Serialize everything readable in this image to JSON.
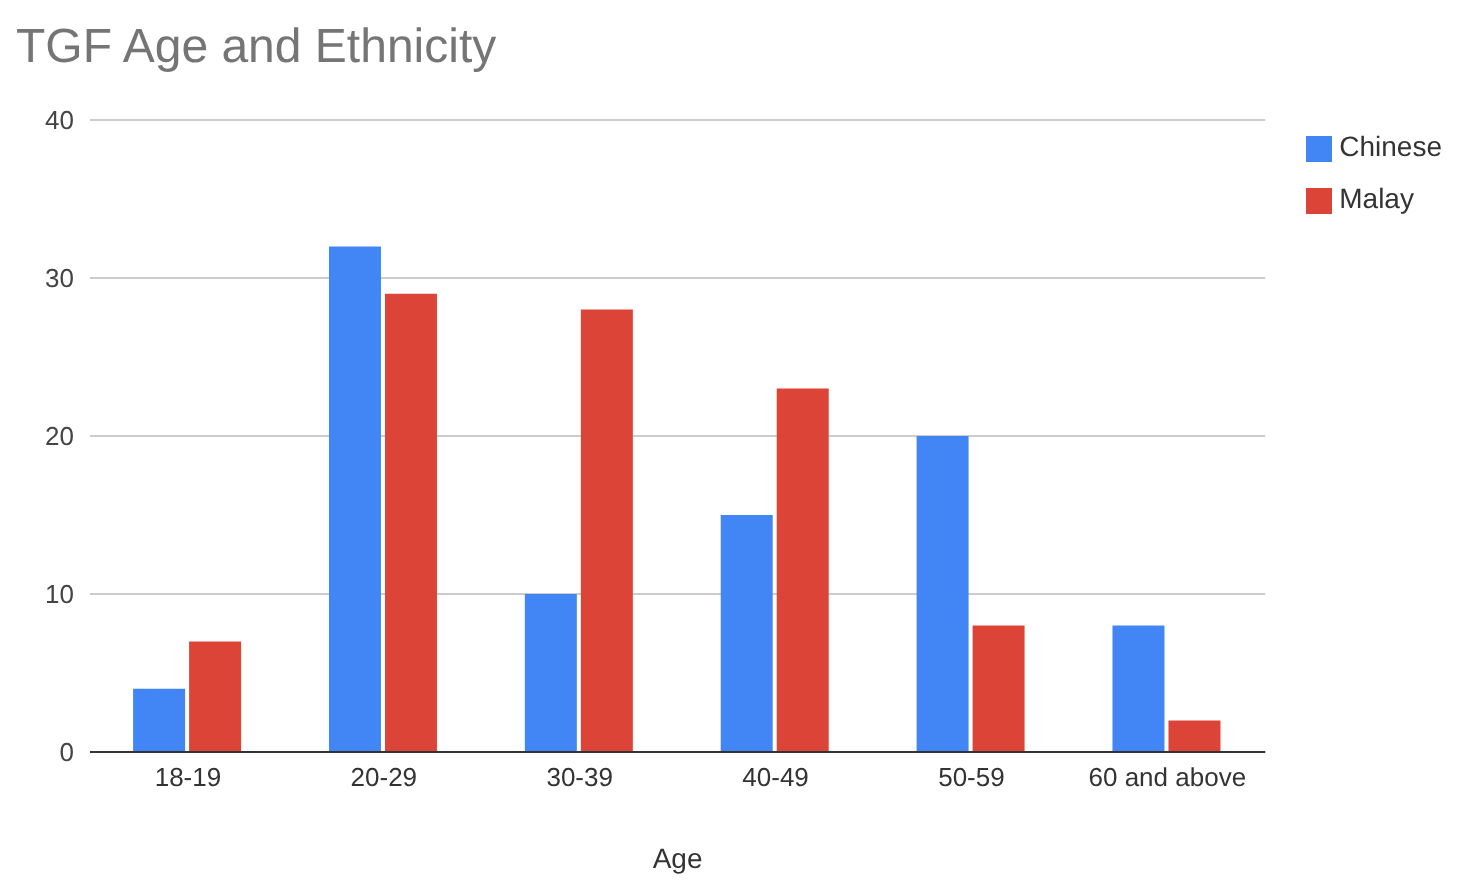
{
  "chart_data": {
    "type": "bar",
    "title": "TGF Age and Ethnicity",
    "xlabel": "Age",
    "categories": [
      "18-19",
      "20-29",
      "30-39",
      "40-49",
      "50-59",
      "60 and above"
    ],
    "series": [
      {
        "name": "Chinese",
        "color": "#4285f4",
        "values": [
          4,
          32,
          10,
          15,
          20,
          8
        ]
      },
      {
        "name": "Malay",
        "color": "#db4437",
        "values": [
          7,
          29,
          28,
          23,
          8,
          2
        ]
      }
    ],
    "ylim": [
      0,
      40
    ],
    "yticks": [
      0,
      10,
      20,
      30,
      40
    ],
    "grid": "y",
    "legend": "top right"
  }
}
